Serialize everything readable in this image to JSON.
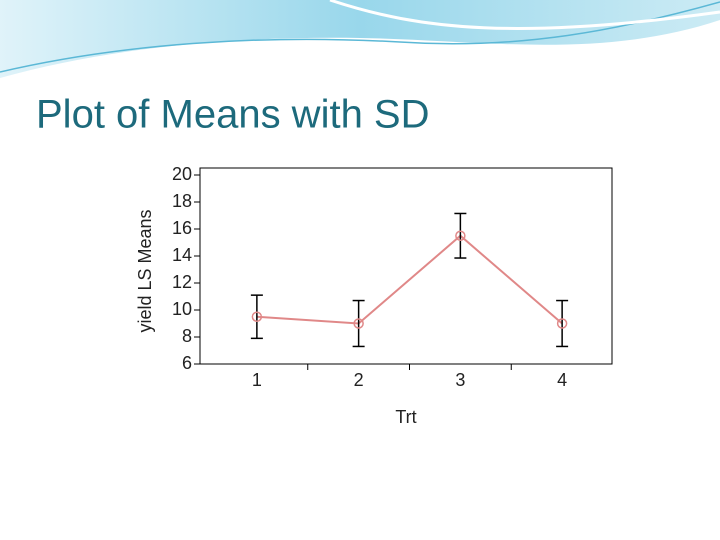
{
  "chart_data": {
    "type": "line",
    "title": "Plot of Means with SD",
    "y_label": "yield LS Means",
    "x_label": "Trt",
    "categories": [
      "1",
      "2",
      "3",
      "4"
    ],
    "values": [
      9.5,
      9.0,
      15.5,
      9.0
    ],
    "errors": [
      1.6,
      1.7,
      1.65,
      1.7
    ],
    "color": "#e08888",
    "error_color": "#000000",
    "ylim": [
      6,
      20
    ],
    "yticks": [
      6,
      8,
      10,
      12,
      14,
      16,
      18,
      20
    ]
  }
}
